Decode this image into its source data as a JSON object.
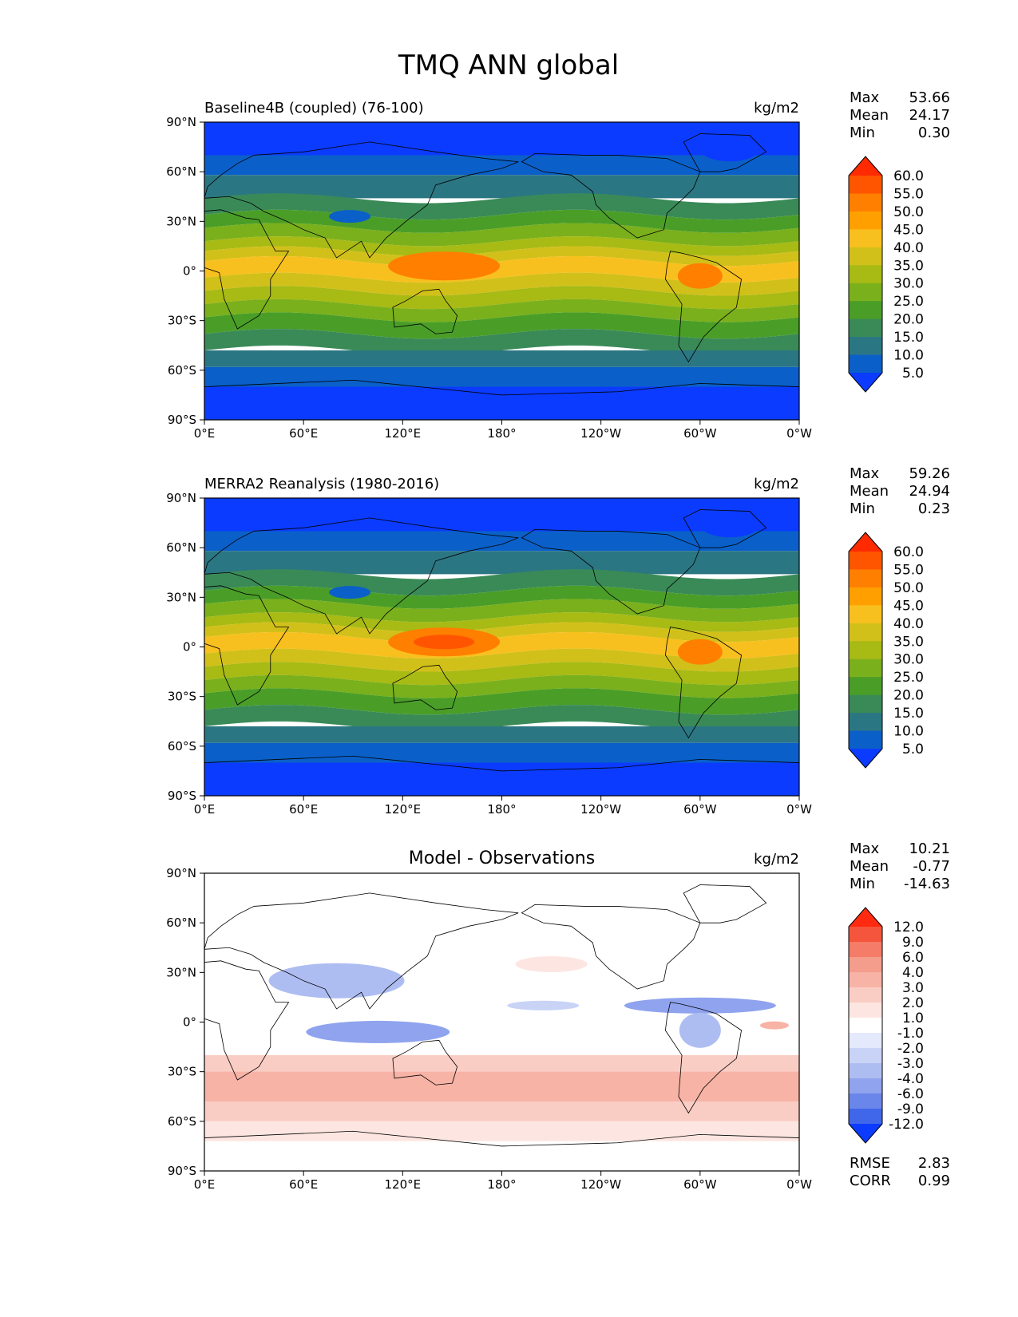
{
  "figure": {
    "title": "TMQ ANN global"
  },
  "chart_data": [
    {
      "type": "heatmap",
      "title": "Baseline4B (coupled) (76-100)",
      "units": "kg/m2",
      "variable": "TMQ",
      "xlim": [
        0,
        360
      ],
      "ylim": [
        -90,
        90
      ],
      "x_tick_labels": [
        "0°E",
        "60°E",
        "120°E",
        "180°",
        "120°W",
        "60°W",
        "0°W"
      ],
      "y_tick_labels": [
        "90°N",
        "60°N",
        "30°N",
        "0°",
        "30°S",
        "60°S",
        "90°S"
      ],
      "stats": {
        "Max": "53.66",
        "Mean": "24.17",
        "Min": "0.30"
      },
      "stat_labels": [
        "Max",
        "Mean",
        "Min"
      ],
      "colorbar": {
        "levels": [
          "60.0",
          "55.0",
          "50.0",
          "45.0",
          "40.0",
          "35.0",
          "30.0",
          "25.0",
          "20.0",
          "15.0",
          "10.0",
          "5.0"
        ],
        "colors": [
          "#ff2a00",
          "#ff5500",
          "#ff7f00",
          "#ffa000",
          "#f8c01e",
          "#d2c01a",
          "#a8ba14",
          "#7ab01c",
          "#4a9e28",
          "#3a8a58",
          "#2b7683",
          "#0a60c8",
          "#0b3bff"
        ]
      }
    },
    {
      "type": "heatmap",
      "title": "MERRA2 Reanalysis (1980-2016)",
      "units": "kg/m2",
      "variable": "TMQ",
      "xlim": [
        0,
        360
      ],
      "ylim": [
        -90,
        90
      ],
      "x_tick_labels": [
        "0°E",
        "60°E",
        "120°E",
        "180°",
        "120°W",
        "60°W",
        "0°W"
      ],
      "y_tick_labels": [
        "90°N",
        "60°N",
        "30°N",
        "0°",
        "30°S",
        "60°S",
        "90°S"
      ],
      "stats": {
        "Max": "59.26",
        "Mean": "24.94",
        "Min": "0.23"
      },
      "stat_labels": [
        "Max",
        "Mean",
        "Min"
      ],
      "colorbar": {
        "levels": [
          "60.0",
          "55.0",
          "50.0",
          "45.0",
          "40.0",
          "35.0",
          "30.0",
          "25.0",
          "20.0",
          "15.0",
          "10.0",
          "5.0"
        ],
        "colors": [
          "#ff2a00",
          "#ff5500",
          "#ff7f00",
          "#ffa000",
          "#f8c01e",
          "#d2c01a",
          "#a8ba14",
          "#7ab01c",
          "#4a9e28",
          "#3a8a58",
          "#2b7683",
          "#0a60c8",
          "#0b3bff"
        ]
      }
    },
    {
      "type": "heatmap",
      "title": "Model - Observations",
      "units": "kg/m2",
      "variable": "TMQ difference",
      "xlim": [
        0,
        360
      ],
      "ylim": [
        -90,
        90
      ],
      "x_tick_labels": [
        "0°E",
        "60°E",
        "120°E",
        "180°",
        "120°W",
        "60°W",
        "0°W"
      ],
      "y_tick_labels": [
        "90°N",
        "60°N",
        "30°N",
        "0°",
        "30°S",
        "60°S",
        "90°S"
      ],
      "stats": {
        "Max": "10.21",
        "Mean": "-0.77",
        "Min": "-14.63"
      },
      "stat_labels": [
        "Max",
        "Mean",
        "Min"
      ],
      "extra_stats": {
        "RMSE": "2.83",
        "CORR": "0.99"
      },
      "extra_stat_labels": [
        "RMSE",
        "CORR"
      ],
      "colorbar": {
        "levels": [
          "12.0",
          "9.0",
          "6.0",
          "4.0",
          "3.0",
          "2.0",
          "1.0",
          "-1.0",
          "-2.0",
          "-3.0",
          "-4.0",
          "-6.0",
          "-9.0",
          "-12.0"
        ],
        "colors": [
          "#ff2a10",
          "#f4553c",
          "#f47c68",
          "#f49d8c",
          "#f7b3a6",
          "#facdc4",
          "#fde6e1",
          "#ffffff",
          "#e4e9fb",
          "#c9d3f6",
          "#aebdf1",
          "#8fa3ee",
          "#6b86ea",
          "#4066ea",
          "#0b3bff"
        ]
      }
    }
  ]
}
